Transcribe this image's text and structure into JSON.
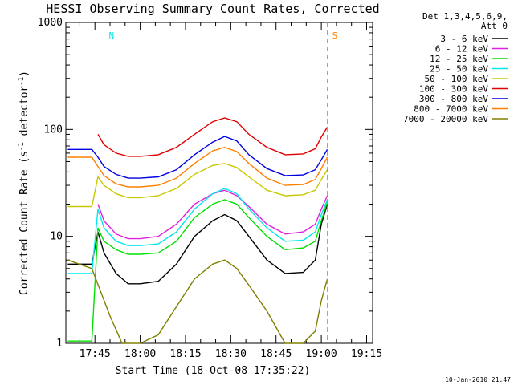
{
  "chart_data": {
    "type": "line",
    "title": "HESSI Observing Summary Count Rates, Corrected",
    "xlabel": "Start Time (18-Oct-08 17:35:22)",
    "ylabel": "Corrected Count Rate (s",
    "ylabel_exp1": "-1",
    "ylabel_mid": " detector",
    "ylabel_exp2": "-1",
    "ylabel_end": ")",
    "y_scale": "log",
    "ylim": [
      1,
      1000
    ],
    "xlim": [
      "17:35:22",
      "19:17:00"
    ],
    "x_ticks": [
      "17:45",
      "18:00",
      "18:15",
      "18:30",
      "18:45",
      "19:00",
      "19:15"
    ],
    "y_ticks": [
      "1",
      "10",
      "100",
      "1000"
    ],
    "legend_position": "right",
    "legend_header": [
      "Det 1,3,4,5,6,9,",
      "Att 0"
    ],
    "series": [
      {
        "name": "3 - 6 keV",
        "color": "#000000",
        "points": [
          [
            "17:36",
            5.5
          ],
          [
            "17:44",
            5.5
          ],
          [
            "17:46",
            11
          ],
          [
            "17:48",
            7
          ],
          [
            "17:52",
            4.5
          ],
          [
            "17:56",
            3.6
          ],
          [
            "18:00",
            3.6
          ],
          [
            "18:06",
            3.8
          ],
          [
            "18:12",
            5.5
          ],
          [
            "18:18",
            10
          ],
          [
            "18:24",
            14
          ],
          [
            "18:28",
            16
          ],
          [
            "18:32",
            14
          ],
          [
            "18:36",
            10
          ],
          [
            "18:42",
            6
          ],
          [
            "18:48",
            4.5
          ],
          [
            "18:54",
            4.6
          ],
          [
            "18:58",
            6
          ],
          [
            "19:00",
            13
          ],
          [
            "19:02",
            20
          ]
        ]
      },
      {
        "name": "6 - 12 keV",
        "color": "#e020e0",
        "points": [
          [
            "17:46",
            20
          ],
          [
            "17:48",
            14
          ],
          [
            "17:52",
            10.5
          ],
          [
            "17:56",
            9.5
          ],
          [
            "18:00",
            9.5
          ],
          [
            "18:06",
            10
          ],
          [
            "18:12",
            13
          ],
          [
            "18:18",
            20
          ],
          [
            "18:24",
            25
          ],
          [
            "18:28",
            27
          ],
          [
            "18:32",
            24
          ],
          [
            "18:36",
            19
          ],
          [
            "18:42",
            13
          ],
          [
            "18:48",
            10.5
          ],
          [
            "18:54",
            11
          ],
          [
            "18:58",
            13
          ],
          [
            "19:00",
            18
          ],
          [
            "19:02",
            24
          ]
        ]
      },
      {
        "name": "12 - 25 keV",
        "color": "#00e000",
        "points": [
          [
            "17:36",
            1.05
          ],
          [
            "17:44",
            1.05
          ],
          [
            "17:46",
            12
          ],
          [
            "17:48",
            9
          ],
          [
            "17:52",
            7.5
          ],
          [
            "17:56",
            6.8
          ],
          [
            "18:00",
            6.8
          ],
          [
            "18:06",
            7
          ],
          [
            "18:12",
            9
          ],
          [
            "18:18",
            15
          ],
          [
            "18:24",
            20
          ],
          [
            "18:28",
            22
          ],
          [
            "18:32",
            20
          ],
          [
            "18:36",
            15
          ],
          [
            "18:42",
            10
          ],
          [
            "18:48",
            7.5
          ],
          [
            "18:54",
            7.8
          ],
          [
            "18:58",
            9
          ],
          [
            "19:00",
            14
          ],
          [
            "19:02",
            21
          ]
        ]
      },
      {
        "name": "25 - 50 keV",
        "color": "#00e8e8",
        "points": [
          [
            "17:36",
            4.5
          ],
          [
            "17:44",
            4.5
          ],
          [
            "17:46",
            18
          ],
          [
            "17:48",
            12
          ],
          [
            "17:52",
            9
          ],
          [
            "17:56",
            8.2
          ],
          [
            "18:00",
            8.2
          ],
          [
            "18:06",
            8.5
          ],
          [
            "18:12",
            11
          ],
          [
            "18:18",
            18
          ],
          [
            "18:24",
            25
          ],
          [
            "18:28",
            28
          ],
          [
            "18:32",
            25
          ],
          [
            "18:36",
            18
          ],
          [
            "18:42",
            12
          ],
          [
            "18:48",
            9
          ],
          [
            "18:54",
            9.2
          ],
          [
            "18:58",
            11
          ],
          [
            "19:00",
            16
          ],
          [
            "19:02",
            22
          ]
        ]
      },
      {
        "name": "50 - 100 keV",
        "color": "#c8c800",
        "points": [
          [
            "17:36",
            19
          ],
          [
            "17:44",
            19
          ],
          [
            "17:46",
            36
          ],
          [
            "17:48",
            30
          ],
          [
            "17:52",
            25
          ],
          [
            "17:56",
            23
          ],
          [
            "18:00",
            23
          ],
          [
            "18:06",
            24
          ],
          [
            "18:12",
            28
          ],
          [
            "18:18",
            38
          ],
          [
            "18:24",
            46
          ],
          [
            "18:28",
            48
          ],
          [
            "18:32",
            44
          ],
          [
            "18:36",
            36
          ],
          [
            "18:42",
            27
          ],
          [
            "18:48",
            24
          ],
          [
            "18:54",
            24.5
          ],
          [
            "18:58",
            27
          ],
          [
            "19:00",
            34
          ],
          [
            "19:02",
            42
          ]
        ]
      },
      {
        "name": "100 - 300 keV",
        "color": "#e00000",
        "points": [
          [
            "17:46",
            90
          ],
          [
            "17:48",
            72
          ],
          [
            "17:52",
            60
          ],
          [
            "17:56",
            56
          ],
          [
            "18:00",
            56
          ],
          [
            "18:06",
            58
          ],
          [
            "18:12",
            68
          ],
          [
            "18:18",
            90
          ],
          [
            "18:24",
            118
          ],
          [
            "18:28",
            128
          ],
          [
            "18:32",
            118
          ],
          [
            "18:36",
            90
          ],
          [
            "18:42",
            68
          ],
          [
            "18:48",
            58
          ],
          [
            "18:54",
            59
          ],
          [
            "18:58",
            66
          ],
          [
            "19:00",
            85
          ],
          [
            "19:02",
            105
          ]
        ]
      },
      {
        "name": "300 - 800 keV",
        "color": "#0000e0",
        "points": [
          [
            "17:36",
            65
          ],
          [
            "17:44",
            65
          ],
          [
            "17:46",
            55
          ],
          [
            "17:48",
            45
          ],
          [
            "17:52",
            38
          ],
          [
            "17:56",
            35
          ],
          [
            "18:00",
            35
          ],
          [
            "18:06",
            36
          ],
          [
            "18:12",
            42
          ],
          [
            "18:18",
            58
          ],
          [
            "18:24",
            76
          ],
          [
            "18:28",
            86
          ],
          [
            "18:32",
            78
          ],
          [
            "18:36",
            58
          ],
          [
            "18:42",
            43
          ],
          [
            "18:48",
            37
          ],
          [
            "18:54",
            37.5
          ],
          [
            "18:58",
            42
          ],
          [
            "19:00",
            52
          ],
          [
            "19:02",
            65
          ]
        ]
      },
      {
        "name": "800 - 7000 keV",
        "color": "#ff8000",
        "points": [
          [
            "17:36",
            55
          ],
          [
            "17:44",
            55
          ],
          [
            "17:46",
            45
          ],
          [
            "17:48",
            37
          ],
          [
            "17:52",
            31
          ],
          [
            "17:56",
            29
          ],
          [
            "18:00",
            29
          ],
          [
            "18:06",
            30
          ],
          [
            "18:12",
            35
          ],
          [
            "18:18",
            48
          ],
          [
            "18:24",
            63
          ],
          [
            "18:28",
            68
          ],
          [
            "18:32",
            62
          ],
          [
            "18:36",
            48
          ],
          [
            "18:42",
            35
          ],
          [
            "18:48",
            30
          ],
          [
            "18:54",
            30.5
          ],
          [
            "18:58",
            34
          ],
          [
            "19:00",
            43
          ],
          [
            "19:02",
            55
          ]
        ]
      },
      {
        "name": "7000 - 20000 keV",
        "color": "#808000",
        "points": [
          [
            "17:36",
            6
          ],
          [
            "17:44",
            5
          ],
          [
            "17:47",
            3
          ],
          [
            "17:50",
            1.8
          ],
          [
            "17:54",
            1.0
          ],
          [
            "18:00",
            1.0
          ],
          [
            "18:06",
            1.2
          ],
          [
            "18:12",
            2.2
          ],
          [
            "18:18",
            4
          ],
          [
            "18:24",
            5.5
          ],
          [
            "18:28",
            6
          ],
          [
            "18:32",
            5
          ],
          [
            "18:36",
            3.5
          ],
          [
            "18:42",
            2
          ],
          [
            "18:48",
            1.0
          ],
          [
            "18:54",
            1.0
          ],
          [
            "18:58",
            1.3
          ],
          [
            "19:00",
            2.5
          ],
          [
            "19:02",
            4
          ]
        ]
      }
    ],
    "annotations": [
      {
        "label": "N",
        "time": "17:48",
        "color": "#00e8e8"
      },
      {
        "label": "S",
        "time": "19:02",
        "color": "#ff8000"
      }
    ],
    "timestamp": "10-Jan-2010 21:47"
  }
}
